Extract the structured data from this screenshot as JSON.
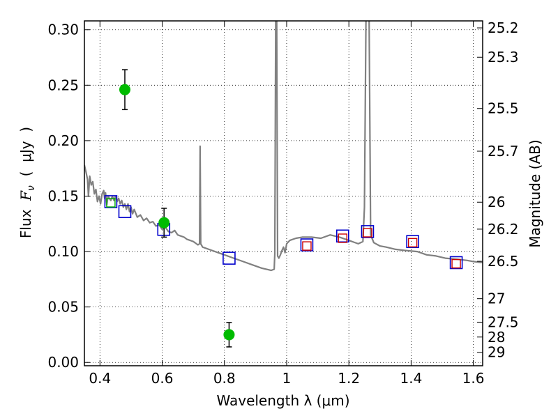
{
  "chart_data": {
    "type": "scatter",
    "xlabel": "Wavelength  λ (μm)",
    "ylabel_left": {
      "prefix": "Flux  ",
      "symbol": "F",
      "subscript": "ν",
      "open": "  (  ",
      "unit": "μJy",
      "close": "  )"
    },
    "ylabel_right": "Magnitude (AB)",
    "xlim": [
      0.35,
      1.63
    ],
    "ylim": [
      -0.003,
      0.308
    ],
    "grid": true,
    "x_ticks": [
      {
        "value": 0.4,
        "label": "0.4"
      },
      {
        "value": 0.6,
        "label": "0.6"
      },
      {
        "value": 0.8,
        "label": "0.8"
      },
      {
        "value": 1.0,
        "label": "1"
      },
      {
        "value": 1.2,
        "label": "1.2"
      },
      {
        "value": 1.4,
        "label": "1.4"
      },
      {
        "value": 1.6,
        "label": "1.6"
      }
    ],
    "y_ticks": [
      {
        "value": 0.0,
        "label": "0.00"
      },
      {
        "value": 0.05,
        "label": "0.05"
      },
      {
        "value": 0.1,
        "label": "0.10"
      },
      {
        "value": 0.15,
        "label": "0.15"
      },
      {
        "value": 0.2,
        "label": "0.20"
      },
      {
        "value": 0.25,
        "label": "0.25"
      },
      {
        "value": 0.3,
        "label": "0.30"
      }
    ],
    "right_ticks": [
      {
        "flux": 0.3017,
        "label": "25.2"
      },
      {
        "flux": 0.2752,
        "label": "25.3"
      },
      {
        "flux": 0.229,
        "label": "25.5"
      },
      {
        "flux": 0.1905,
        "label": "25.7"
      },
      {
        "flux": 0.1445,
        "label": "26"
      },
      {
        "flux": 0.1202,
        "label": "26.2"
      },
      {
        "flux": 0.0912,
        "label": "26.5"
      },
      {
        "flux": 0.0575,
        "label": "27"
      },
      {
        "flux": 0.0363,
        "label": "27.5"
      },
      {
        "flux": 0.0229,
        "label": "28"
      },
      {
        "flux": 0.0091,
        "label": "29"
      }
    ],
    "series": [
      {
        "kind": "spectrum",
        "color": "#808080",
        "points": [
          [
            0.35,
            0.178
          ],
          [
            0.355,
            0.172
          ],
          [
            0.36,
            0.165
          ],
          [
            0.363,
            0.15
          ],
          [
            0.367,
            0.168
          ],
          [
            0.372,
            0.16
          ],
          [
            0.377,
            0.163
          ],
          [
            0.382,
            0.152
          ],
          [
            0.387,
            0.156
          ],
          [
            0.392,
            0.145
          ],
          [
            0.397,
            0.15
          ],
          [
            0.402,
            0.143
          ],
          [
            0.407,
            0.152
          ],
          [
            0.412,
            0.155
          ],
          [
            0.415,
            0.148
          ],
          [
            0.418,
            0.153
          ],
          [
            0.422,
            0.142
          ],
          [
            0.426,
            0.15
          ],
          [
            0.43,
            0.148
          ],
          [
            0.435,
            0.146
          ],
          [
            0.44,
            0.15
          ],
          [
            0.445,
            0.146
          ],
          [
            0.45,
            0.15
          ],
          [
            0.455,
            0.145
          ],
          [
            0.46,
            0.148
          ],
          [
            0.465,
            0.143
          ],
          [
            0.47,
            0.146
          ],
          [
            0.475,
            0.14
          ],
          [
            0.48,
            0.143
          ],
          [
            0.485,
            0.138
          ],
          [
            0.49,
            0.143
          ],
          [
            0.495,
            0.136
          ],
          [
            0.5,
            0.14
          ],
          [
            0.505,
            0.134
          ],
          [
            0.51,
            0.138
          ],
          [
            0.52,
            0.131
          ],
          [
            0.53,
            0.133
          ],
          [
            0.54,
            0.128
          ],
          [
            0.55,
            0.13
          ],
          [
            0.56,
            0.126
          ],
          [
            0.57,
            0.127
          ],
          [
            0.58,
            0.123
          ],
          [
            0.59,
            0.124
          ],
          [
            0.6,
            0.12
          ],
          [
            0.61,
            0.122
          ],
          [
            0.62,
            0.118
          ],
          [
            0.63,
            0.117
          ],
          [
            0.64,
            0.119
          ],
          [
            0.65,
            0.115
          ],
          [
            0.66,
            0.114
          ],
          [
            0.67,
            0.113
          ],
          [
            0.68,
            0.111
          ],
          [
            0.69,
            0.11
          ],
          [
            0.7,
            0.109
          ],
          [
            0.71,
            0.107
          ],
          [
            0.715,
            0.106
          ],
          [
            0.72,
            0.107
          ],
          [
            0.722,
            0.195
          ],
          [
            0.724,
            0.107
          ],
          [
            0.73,
            0.104
          ],
          [
            0.75,
            0.102
          ],
          [
            0.78,
            0.099
          ],
          [
            0.8,
            0.097
          ],
          [
            0.83,
            0.094
          ],
          [
            0.86,
            0.091
          ],
          [
            0.89,
            0.088
          ],
          [
            0.92,
            0.085
          ],
          [
            0.95,
            0.083
          ],
          [
            0.96,
            0.084
          ],
          [
            0.962,
            0.098
          ],
          [
            0.965,
            0.31
          ],
          [
            0.968,
            0.31
          ],
          [
            0.971,
            0.096
          ],
          [
            0.975,
            0.094
          ],
          [
            0.98,
            0.097
          ],
          [
            0.985,
            0.101
          ],
          [
            0.99,
            0.104
          ],
          [
            0.995,
            0.099
          ],
          [
            1.0,
            0.107
          ],
          [
            1.01,
            0.11
          ],
          [
            1.03,
            0.112
          ],
          [
            1.05,
            0.113
          ],
          [
            1.08,
            0.113
          ],
          [
            1.11,
            0.112
          ],
          [
            1.14,
            0.115
          ],
          [
            1.17,
            0.113
          ],
          [
            1.2,
            0.11
          ],
          [
            1.23,
            0.107
          ],
          [
            1.245,
            0.109
          ],
          [
            1.25,
            0.14
          ],
          [
            1.255,
            0.31
          ],
          [
            1.265,
            0.31
          ],
          [
            1.27,
            0.115
          ],
          [
            1.28,
            0.108
          ],
          [
            1.3,
            0.105
          ],
          [
            1.32,
            0.104
          ],
          [
            1.35,
            0.102
          ],
          [
            1.38,
            0.101
          ],
          [
            1.42,
            0.1
          ],
          [
            1.45,
            0.097
          ],
          [
            1.48,
            0.096
          ],
          [
            1.51,
            0.094
          ],
          [
            1.55,
            0.093
          ],
          [
            1.58,
            0.092
          ],
          [
            1.6,
            0.091
          ],
          [
            1.63,
            0.09
          ]
        ]
      },
      {
        "kind": "photometry_blue_squares",
        "color": "#0000cc",
        "points": [
          [
            0.435,
            0.145
          ],
          [
            0.48,
            0.136
          ],
          [
            0.605,
            0.12
          ],
          [
            0.815,
            0.094
          ],
          [
            1.065,
            0.106
          ],
          [
            1.18,
            0.114
          ],
          [
            1.26,
            0.118
          ],
          [
            1.405,
            0.109
          ],
          [
            1.545,
            0.09
          ]
        ]
      },
      {
        "kind": "model_red_squares",
        "color": "#cc0000",
        "points": [
          [
            1.065,
            0.105
          ],
          [
            1.18,
            0.112
          ],
          [
            1.26,
            0.117
          ],
          [
            1.405,
            0.108
          ],
          [
            1.545,
            0.089
          ]
        ]
      },
      {
        "kind": "model_green_square",
        "color": "#00b000",
        "points": [
          [
            0.435,
            0.144
          ]
        ]
      },
      {
        "kind": "observed_green_circles",
        "color": "#00bb00",
        "points": [
          {
            "x": 0.48,
            "y": 0.246,
            "err": 0.018
          },
          {
            "x": 0.606,
            "y": 0.126,
            "err": 0.013
          },
          {
            "x": 0.815,
            "y": 0.025,
            "err": 0.011
          }
        ]
      }
    ]
  }
}
